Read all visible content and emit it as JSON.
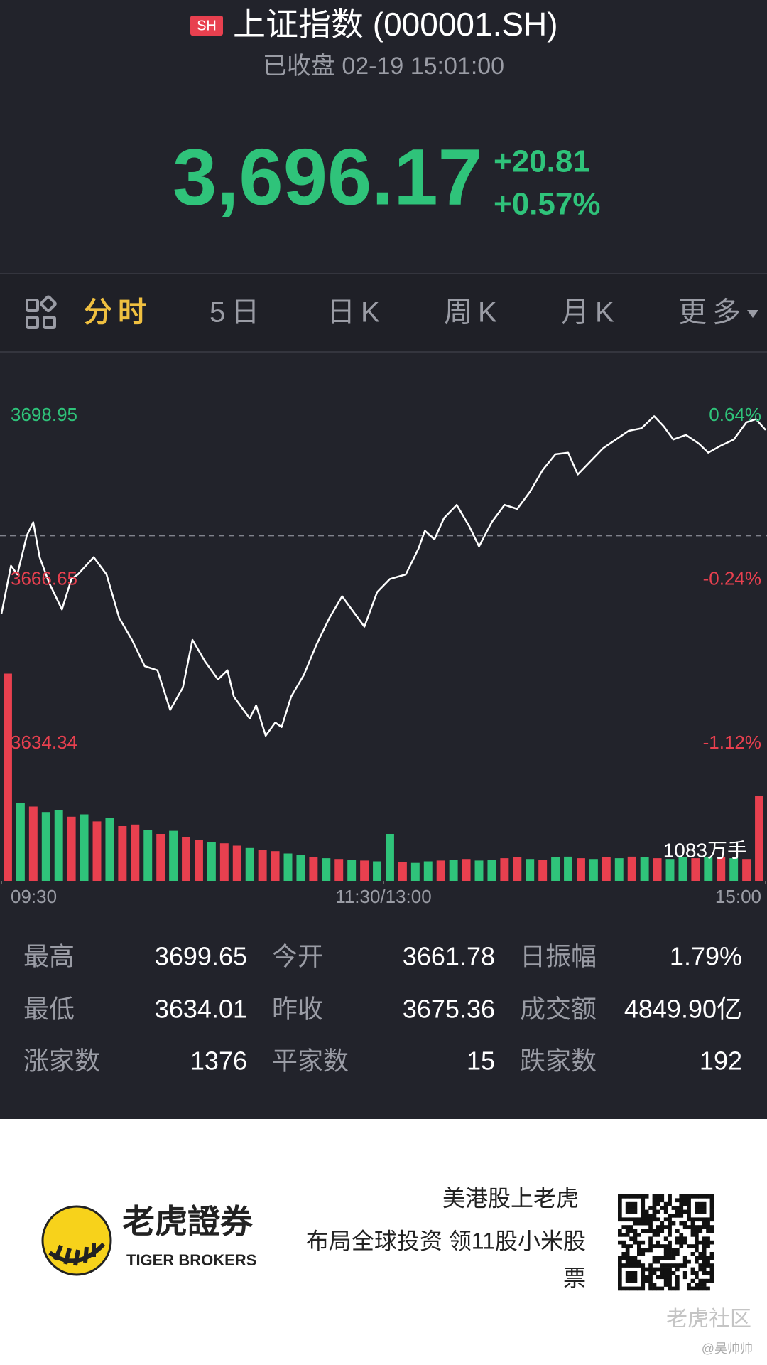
{
  "header": {
    "badge": "SH",
    "title": "上证指数 (000001.SH)",
    "status": "已收盘 02-19 15:01:00"
  },
  "quote": {
    "price": "3,696.17",
    "change": "+20.81",
    "change_pct": "+0.57%"
  },
  "tabs": [
    "分时",
    "5日",
    "日K",
    "周K",
    "月K",
    "更多"
  ],
  "chart_data": {
    "type": "line",
    "x": [
      0,
      3,
      5,
      8,
      10,
      12,
      15,
      19,
      22,
      24,
      29,
      33,
      37,
      41,
      45,
      49,
      53,
      57,
      60,
      64,
      68,
      71,
      73,
      78,
      80,
      83,
      86,
      88,
      91,
      95,
      99,
      103,
      107,
      112,
      114,
      118,
      122,
      127,
      131,
      133,
      136,
      139,
      143,
      147,
      150,
      154,
      158,
      162,
      166,
      170,
      174,
      178,
      181,
      185,
      189,
      193,
      197,
      201,
      205,
      208,
      211,
      215,
      219,
      222,
      226,
      230,
      234,
      237,
      240
    ],
    "series": [
      {
        "color": "#ffffff",
        "values": [
          3659.9,
          3669.4,
          3667.7,
          3675.4,
          3678.0,
          3671.1,
          3666.0,
          3660.8,
          3666.8,
          3667.7,
          3671.1,
          3667.7,
          3659.1,
          3654.8,
          3649.6,
          3648.8,
          3641.0,
          3645.4,
          3654.8,
          3650.5,
          3647.0,
          3648.8,
          3643.6,
          3639.3,
          3641.9,
          3635.9,
          3638.5,
          3637.6,
          3643.6,
          3647.9,
          3653.9,
          3659.1,
          3663.4,
          3659.1,
          3657.4,
          3664.2,
          3666.8,
          3667.7,
          3672.8,
          3676.3,
          3674.6,
          3678.8,
          3681.4,
          3677.1,
          3673.2,
          3678.0,
          3681.4,
          3680.6,
          3684.0,
          3688.3,
          3691.4,
          3691.7,
          3687.4,
          3690.0,
          3692.6,
          3694.3,
          3696.0,
          3696.5,
          3698.9,
          3696.9,
          3694.3,
          3695.2,
          3693.5,
          3691.7,
          3693.1,
          3694.3,
          3697.7,
          3698.3,
          3696.17
        ]
      }
    ],
    "xlim": [
      0,
      240
    ],
    "xticks": [
      {
        "value": 0,
        "label": "09:30"
      },
      {
        "value": 120,
        "label": "11:30/13:00"
      },
      {
        "value": 240,
        "label": "15:00"
      }
    ],
    "ylim": [
      3634.34,
      3698.95
    ],
    "yticks": [
      3698.95,
      3666.65,
      3634.34
    ],
    "y2lim": [
      -1.12,
      0.64
    ],
    "y2ticks": [
      {
        "value": 0.64,
        "label": "0.64%"
      },
      {
        "value": -0.24,
        "label": "-0.24%"
      },
      {
        "value": -1.12,
        "label": "-1.12%"
      }
    ],
    "up_color": "#2fc37a",
    "down_color": "#e8404f",
    "volume": {
      "label": "1083万手",
      "values": [
        2650,
        1000,
        950,
        880,
        900,
        820,
        850,
        760,
        800,
        700,
        720,
        650,
        600,
        640,
        560,
        520,
        500,
        480,
        450,
        420,
        400,
        380,
        350,
        330,
        300,
        290,
        280,
        270,
        260,
        250,
        600,
        240,
        230,
        250,
        260,
        270,
        280,
        260,
        270,
        290,
        300,
        280,
        270,
        300,
        310,
        290,
        280,
        300,
        290,
        310,
        300,
        290,
        280,
        300,
        290,
        310,
        300,
        290,
        280,
        1083
      ],
      "up": [
        false,
        true,
        false,
        true,
        true,
        false,
        true,
        false,
        true,
        false,
        false,
        true,
        false,
        true,
        false,
        false,
        true,
        false,
        false,
        true,
        false,
        false,
        true,
        true,
        false,
        true,
        false,
        true,
        false,
        true,
        true,
        false,
        true,
        true,
        false,
        true,
        false,
        true,
        true,
        false,
        false,
        true,
        false,
        true,
        true,
        false,
        true,
        false,
        true,
        false,
        true,
        false,
        true,
        true,
        false,
        true,
        false,
        true,
        false,
        false
      ]
    }
  },
  "stats": {
    "rows": [
      [
        {
          "label": "最高",
          "value": 3699.65
        },
        {
          "label": "今开",
          "value": 3661.78
        },
        {
          "label": "日振幅",
          "value": "1.79%"
        }
      ],
      [
        {
          "label": "最低",
          "value": 3634.01
        },
        {
          "label": "昨收",
          "value": 3675.36
        },
        {
          "label": "成交额",
          "value": "4849.90亿"
        }
      ],
      [
        {
          "label": "涨家数",
          "value": 1376
        },
        {
          "label": "平家数",
          "value": 15
        },
        {
          "label": "跌家数",
          "value": 192
        }
      ]
    ]
  },
  "footer": {
    "brand": "老虎證券",
    "brand_en": "TIGER BROKERS",
    "ad_lines": [
      "美港股上老虎",
      "布局全球投资 领11股小米股",
      "票"
    ],
    "watermark": "老虎社区",
    "author": "@吴帅帅"
  }
}
